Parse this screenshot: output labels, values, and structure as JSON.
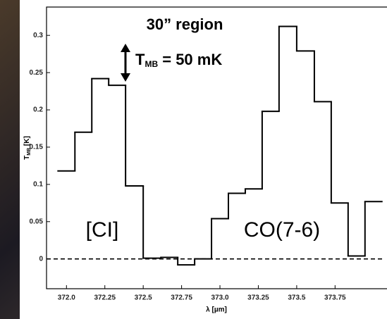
{
  "chart_data": {
    "type": "step",
    "x": [
      372.0,
      372.11,
      372.22,
      372.33,
      372.44,
      372.56,
      372.67,
      372.78,
      372.89,
      373.0,
      373.11,
      373.22,
      373.33,
      373.44,
      373.56,
      373.67,
      373.78,
      373.89,
      374.0
    ],
    "values": [
      0.118,
      0.17,
      0.242,
      0.233,
      0.098,
      0.001,
      0.002,
      -0.008,
      0.0,
      0.054,
      0.088,
      0.094,
      0.198,
      0.312,
      0.279,
      0.211,
      0.075,
      0.004,
      0.077
    ],
    "color": "#000000",
    "xlim": [
      371.87,
      374.07
    ],
    "ylim": [
      -0.04,
      0.338
    ],
    "xticks": [
      {
        "value": 372,
        "label": "372.0"
      },
      372.25,
      372.5,
      372.75,
      {
        "value": 373,
        "label": "373.0"
      },
      373.25,
      373.5,
      373.75
    ],
    "yticks": [
      0,
      0.05,
      0.1,
      0.15,
      0.2,
      0.25,
      0.3
    ],
    "reference_line": 0,
    "xlabel": "λ [µm]",
    "ylabel": {
      "main": "T",
      "sub": "MB",
      "suffix": " [K]"
    },
    "annotations": {
      "region": "30” region",
      "scale": {
        "main": "T",
        "sub": "MB",
        "suffix": " = 50 mK"
      },
      "line1": "[CI]",
      "line2": "CO(7-6)"
    }
  }
}
